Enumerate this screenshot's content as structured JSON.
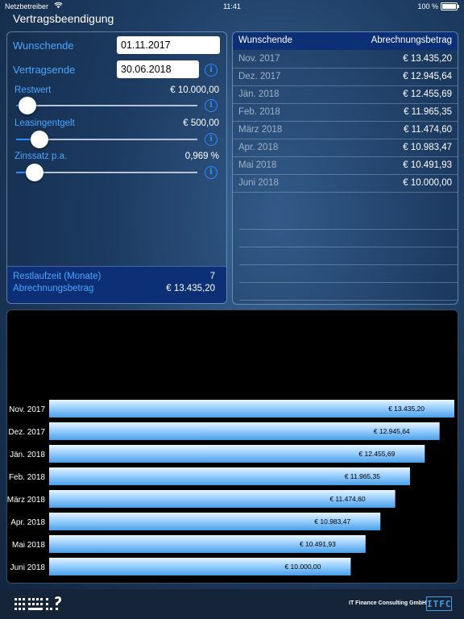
{
  "status": {
    "carrier": "Netzbetreiber",
    "time": "11:41",
    "battery": "100 %"
  },
  "title": "Vertragsbeendigung",
  "form": {
    "wunschende_label": "Wunschende",
    "wunschende_value": "01.11.2017",
    "vertragsende_label": "Vertragsende",
    "vertragsende_value": "30.06.2018",
    "restwert_label": "Restwert",
    "restwert_value": "€ 10.000,00",
    "restwert_level": 0.06,
    "leasing_label": "Leasingentgelt",
    "leasing_value": "€ 500,00",
    "leasing_level": 0.13,
    "zins_label": "Zinssatz p.a.",
    "zins_value": "0,969 %",
    "zins_level": 0.1
  },
  "summary": {
    "restlaufzeit_label": "Restlaufzeit (Monate)",
    "restlaufzeit_value": "7",
    "abrechnung_label": "Abrechnungsbetrag",
    "abrechnung_value": "€ 13.435,20"
  },
  "table": {
    "headers": [
      "Wunschende",
      "Abrechnungsbetrag"
    ],
    "rows": [
      {
        "month": "Nov. 2017",
        "amount": "€ 13.435,20"
      },
      {
        "month": "Dez. 2017",
        "amount": "€ 12.945,64"
      },
      {
        "month": "Jän. 2018",
        "amount": "€ 12.455,69"
      },
      {
        "month": "Feb. 2018",
        "amount": "€ 11.965,35"
      },
      {
        "month": "März 2018",
        "amount": "€ 11.474,60"
      },
      {
        "month": "Apr. 2018",
        "amount": "€ 10.983,47"
      },
      {
        "month": "Mai 2018",
        "amount": "€ 10.491,93"
      },
      {
        "month": "Juni 2018",
        "amount": "€ 10.000,00"
      }
    ]
  },
  "chart_data": {
    "type": "bar",
    "orientation": "horizontal",
    "categories": [
      "Nov. 2017",
      "Dez. 2017",
      "Jän. 2018",
      "Feb. 2018",
      "März 2018",
      "Apr. 2018",
      "Mai 2018",
      "Juni 2018"
    ],
    "values": [
      13435.2,
      12945.64,
      12455.69,
      11965.35,
      11474.6,
      10983.47,
      10491.93,
      10000.0
    ],
    "value_labels": [
      "€ 13.435,20",
      "€ 12.945,64",
      "€ 12.455,69",
      "€ 11.965,35",
      "€ 11.474,60",
      "€ 10.983,47",
      "€ 10.491,93",
      "€ 10.000,00"
    ],
    "xlim": [
      0,
      13435.2
    ]
  },
  "footer": {
    "company": "IT Finance Consulting GmbH",
    "logo_text": "ITFC"
  },
  "colors": {
    "accent": "#4aa6ff",
    "header_bg": "#0d2f76",
    "bar": "#9cd0ff"
  }
}
